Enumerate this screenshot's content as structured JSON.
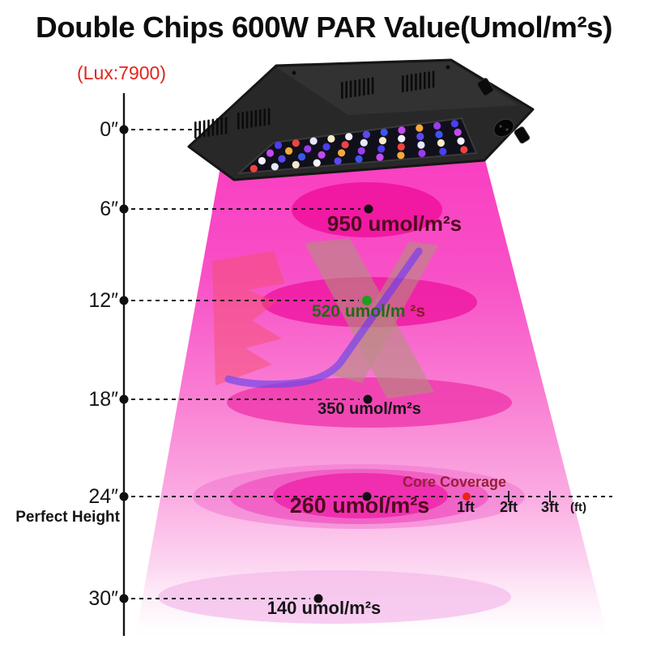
{
  "title": "Double Chips 600W PAR Value(Umol/m²s)",
  "lux_label": "(Lux:7900)",
  "levels": [
    {
      "height": "0″"
    },
    {
      "height": "6″",
      "value": "950 umol/m²s"
    },
    {
      "height": "12″",
      "value": "520 umol/m",
      "value_suffix": "²s"
    },
    {
      "height": "18″",
      "value": "350 umol/m²s"
    },
    {
      "height": "24″",
      "value": "260 umol/m²s"
    },
    {
      "height": "30″",
      "value": "140 umol/m²s"
    }
  ],
  "perfect_height_label": "Perfect Height",
  "coverage": {
    "core_label": "Core Coverage",
    "tick_1": "1ft",
    "tick_2": "2ft",
    "tick_3": "3ft",
    "unit": "(ft)"
  },
  "colors": {
    "title_text": "#0d0d0d",
    "lux_red": "#e3241d",
    "cone_pink": "#f93ec1",
    "ellipse_deep_pink": "#ee16a0",
    "value_dark": "#151515",
    "value_maroon": "#4d0c1e",
    "value_green": "#206b16",
    "suffix_red": "#8b1a2a",
    "core_coverage_red": "#95203a",
    "dot_black": "#101010",
    "dot_green": "#1f9e1f",
    "dot_red": "#ea2415"
  },
  "lamp": {
    "led_colors": [
      "#4a3ff2",
      "#c24bf0",
      "#f6f3ff",
      "#ef4340",
      "#f2a93c",
      "#5b48f5",
      "#e8e6ff",
      "#9b3cf0",
      "#3d55ee",
      "#f7e9c8"
    ]
  }
}
